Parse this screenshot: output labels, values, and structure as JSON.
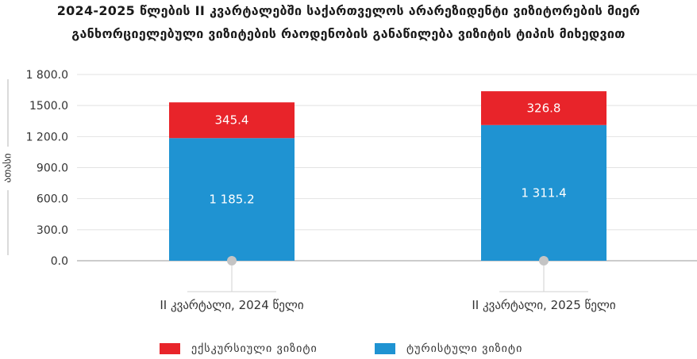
{
  "colors": {
    "excursion": "#e8242a",
    "tourist": "#1f93d2",
    "grid": "#e2e2e2",
    "axis": "#9a9a9a",
    "marker": "#c4c4c4"
  },
  "chart_data": {
    "type": "bar",
    "stacked": true,
    "title_line1": "2024-2025 წლების II კვარტალებში საქართველოს არარეზიდენტი ვიზიტორების მიერ",
    "title_line2": "განხორციელებული ვიზიტების რაოდენობის განაწილება ვიზიტის ტიპის მიხედვით",
    "ylabel": "ათასი",
    "ylim": [
      0,
      1800
    ],
    "yticks": [
      {
        "value": 0,
        "label": "0.0"
      },
      {
        "value": 300,
        "label": "300.0"
      },
      {
        "value": 600,
        "label": "600.0"
      },
      {
        "value": 900,
        "label": "900.0"
      },
      {
        "value": 1200,
        "label": "1 200.0"
      },
      {
        "value": 1500,
        "label": "1500.0"
      },
      {
        "value": 1800,
        "label": "1 800.0"
      }
    ],
    "grid": true,
    "legend_position": "bottom",
    "categories": [
      "II კვარტალი, 2024 წელი",
      "II კვარტალი, 2025 წელი"
    ],
    "series": [
      {
        "name": "ტურისტული ვიზიტი",
        "color": "#1f93d2",
        "values": [
          1185.2,
          1311.4
        ],
        "labels": [
          "1 185.2",
          "1 311.4"
        ]
      },
      {
        "name": "ექსკურსიული ვიზიტი",
        "color": "#e8242a",
        "values": [
          345.4,
          326.8
        ],
        "labels": [
          "345.4",
          "326.8"
        ]
      }
    ]
  }
}
